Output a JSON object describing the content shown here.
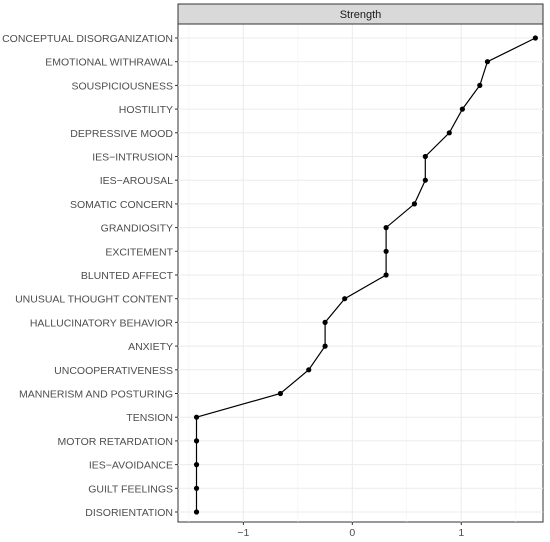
{
  "chart_data": {
    "type": "line",
    "title": "",
    "facet_label": "Strength",
    "xlabel": "",
    "ylabel": "",
    "xlim": [
      -1.6,
      1.75
    ],
    "x_ticks": [
      -1,
      0,
      1
    ],
    "x_tick_labels": [
      "−1",
      "0",
      "1"
    ],
    "grid": true,
    "legend": "none",
    "colors": {
      "line": "#000000",
      "point": "#000000",
      "grid": "#ebebeb",
      "strip_fill": "#d9d9d9",
      "panel_border": "#333333"
    },
    "categories": [
      "CONCEPTUAL DISORGANIZATION",
      "EMOTIONAL WITHRAWAL",
      "SOUSPICIOUSNESS",
      "HOSTILITY",
      "DEPRESSIVE MOOD",
      "IES−INTRUSION",
      "IES−AROUSAL",
      "SOMATIC CONCERN",
      "GRANDIOSITY",
      "EXCITEMENT",
      "BLUNTED AFFECT",
      "UNUSUAL THOUGHT CONTENT",
      "HALLUCINATORY BEHAVIOR",
      "ANXIETY",
      "UNCOOPERATIVENESS",
      "MANNERISM AND POSTURING",
      "TENSION",
      "MOTOR RETARDATION",
      "IES−AVOIDANCE",
      "GUILT FEELINGS",
      "DISORIENTATION"
    ],
    "values": [
      1.68,
      1.24,
      1.17,
      1.01,
      0.89,
      0.67,
      0.67,
      0.57,
      0.31,
      0.31,
      0.31,
      -0.07,
      -0.25,
      -0.25,
      -0.4,
      -0.66,
      -1.43,
      -1.43,
      -1.43,
      -1.43,
      -1.43
    ]
  }
}
